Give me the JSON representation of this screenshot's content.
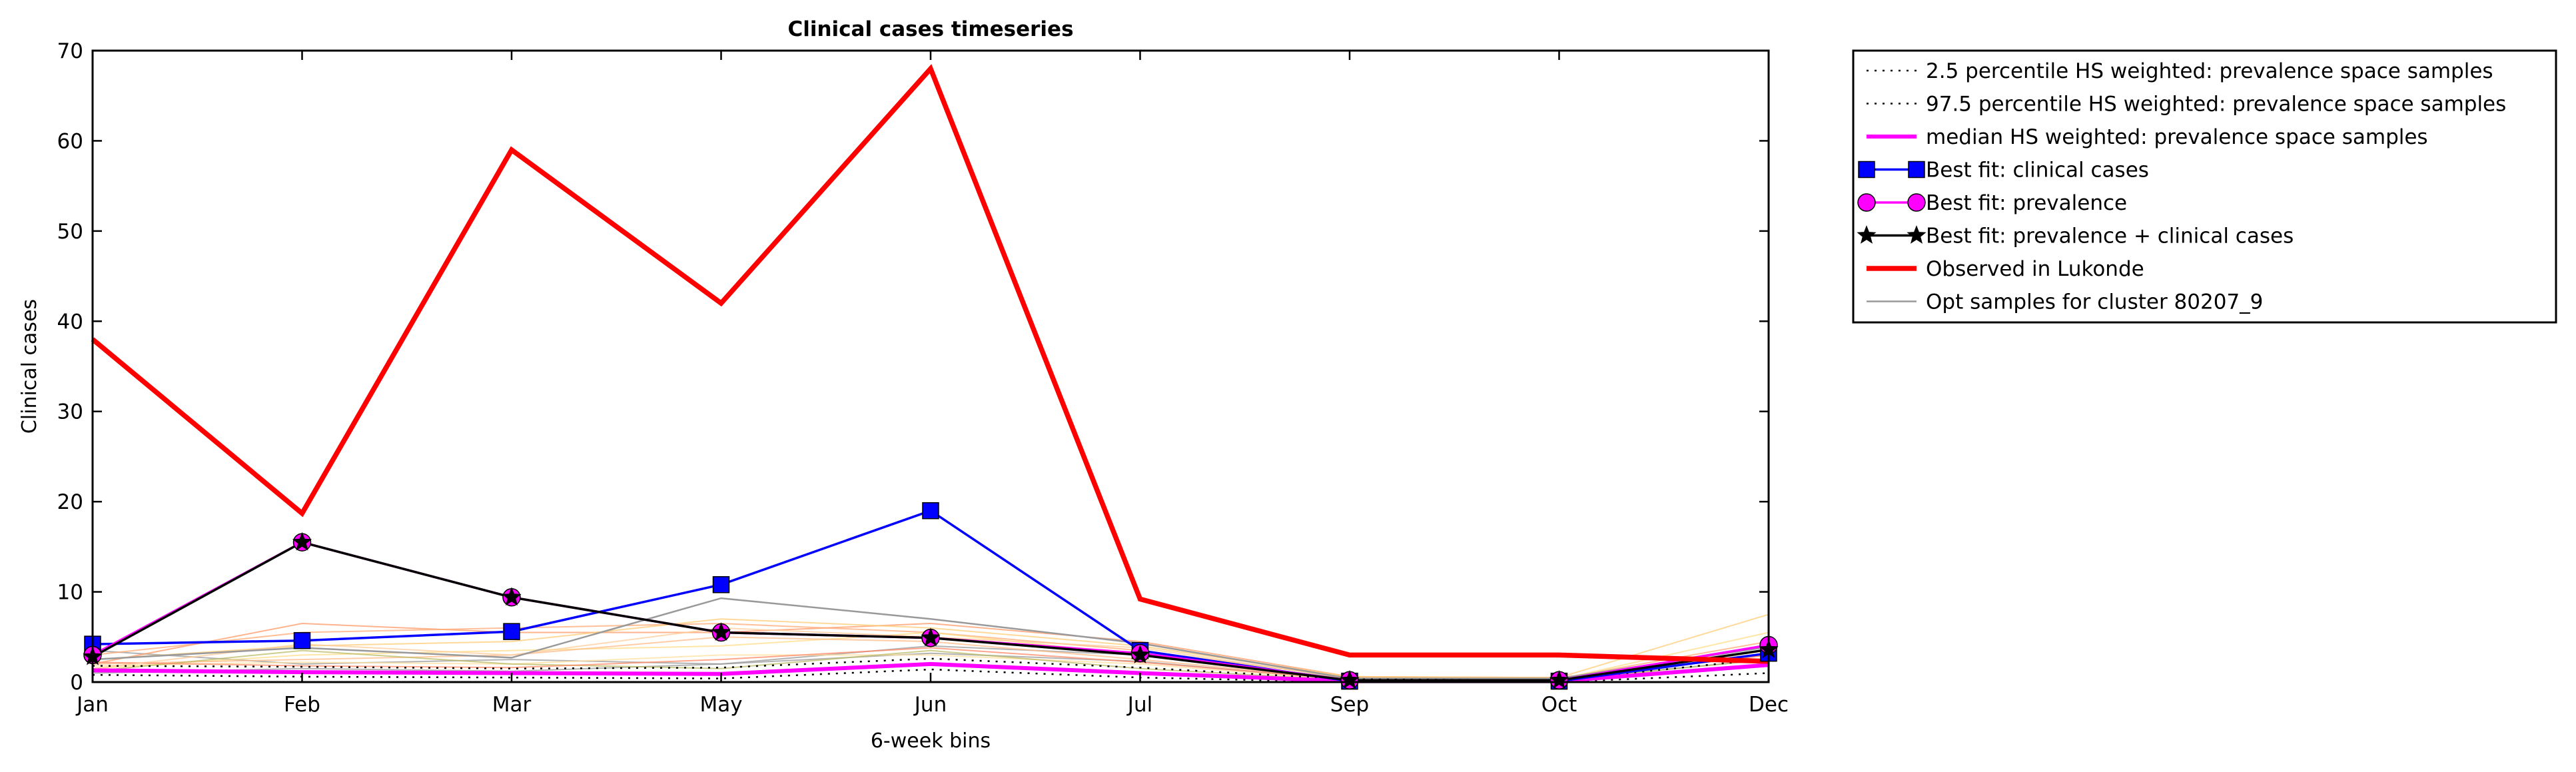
{
  "chart_data": {
    "type": "line",
    "title": "Clinical cases timeseries",
    "xlabel": "6-week bins",
    "ylabel": "Clinical cases",
    "categories": [
      "Jan",
      "Feb",
      "Mar",
      "May",
      "Jun",
      "Jul",
      "Sep",
      "Oct",
      "Dec"
    ],
    "ylim": [
      0,
      70
    ],
    "yticks": [
      0,
      10,
      20,
      30,
      40,
      50,
      60,
      70
    ],
    "grid": false,
    "legend_position": "outside-right-top",
    "series": [
      {
        "name": "2.5 percentile HS weighted: prevalence space samples",
        "values": [
          0.8,
          0.6,
          0.5,
          0.4,
          1.4,
          0.5,
          0.0,
          0.0,
          1.0
        ],
        "color": "#000000",
        "style": "dotted",
        "marker": "none"
      },
      {
        "name": "97.5 percentile HS weighted: prevalence space samples",
        "values": [
          1.8,
          1.7,
          1.5,
          1.6,
          2.6,
          1.6,
          0.3,
          0.2,
          2.6
        ],
        "color": "#000000",
        "style": "dotted",
        "marker": "none"
      },
      {
        "name": "median HS weighted: prevalence space samples",
        "values": [
          1.3,
          1.1,
          1.0,
          0.9,
          2.0,
          1.0,
          0.1,
          0.1,
          1.9
        ],
        "color": "#ff00ff",
        "style": "solid",
        "marker": "none"
      },
      {
        "name": "Best fit: clinical cases",
        "values": [
          4.2,
          4.6,
          5.6,
          10.8,
          19.0,
          3.5,
          0.1,
          0.1,
          3.2
        ],
        "color": "#0000ff",
        "style": "solid",
        "marker": "square"
      },
      {
        "name": "Best fit: prevalence",
        "values": [
          3.0,
          15.5,
          9.4,
          5.5,
          4.9,
          3.2,
          0.2,
          0.2,
          4.1
        ],
        "color": "#ff00ff",
        "style": "solid",
        "marker": "circle"
      },
      {
        "name": "Best fit: prevalence + clinical cases",
        "values": [
          2.8,
          15.5,
          9.4,
          5.5,
          4.9,
          3.0,
          0.2,
          0.2,
          3.6
        ],
        "color": "#000000",
        "style": "solid",
        "marker": "star"
      },
      {
        "name": "Observed in Lukonde",
        "values": [
          38,
          18.7,
          59,
          42,
          68,
          9.2,
          3.0,
          3.0,
          2.3
        ],
        "color": "#ff0000",
        "style": "solid",
        "marker": "none"
      },
      {
        "name": "Opt samples for cluster 80207_9",
        "values": [
          2.5,
          3.8,
          2.7,
          9.3,
          7.0,
          4.3,
          0.4,
          0.4,
          3.9
        ],
        "color": "#999999",
        "style": "solid",
        "marker": "none"
      }
    ],
    "sample_lines": [
      {
        "values": [
          1.0,
          1.5,
          1.2,
          2.0,
          3.2,
          2.3,
          0.2,
          0.2,
          2.0
        ],
        "color": "#999999"
      },
      {
        "values": [
          3.5,
          2.0,
          2.5,
          2.0,
          4.0,
          3.0,
          0.4,
          0.3,
          2.5
        ],
        "color": "#999999"
      },
      {
        "values": [
          2.0,
          6.5,
          5.5,
          5.5,
          6.5,
          4.5,
          0.6,
          0.5,
          3.0
        ],
        "color": "#ff9966"
      },
      {
        "values": [
          3.0,
          5.5,
          6.0,
          6.5,
          5.5,
          3.5,
          0.5,
          0.4,
          4.5
        ],
        "color": "#ffaa77"
      },
      {
        "values": [
          2.5,
          4.0,
          4.5,
          7.0,
          6.0,
          4.0,
          0.6,
          0.5,
          7.5
        ],
        "color": "#ffcc77"
      },
      {
        "values": [
          1.5,
          3.0,
          3.5,
          4.0,
          5.5,
          3.0,
          0.3,
          0.3,
          5.5
        ],
        "color": "#ffdd88"
      },
      {
        "values": [
          2.0,
          2.5,
          3.0,
          5.0,
          4.5,
          2.5,
          0.3,
          0.2,
          4.0
        ],
        "color": "#ffbb88"
      },
      {
        "values": [
          1.8,
          2.2,
          2.0,
          3.0,
          3.0,
          2.0,
          0.2,
          0.2,
          3.5
        ],
        "color": "#ffe0a0"
      },
      {
        "values": [
          1.2,
          3.5,
          2.0,
          1.5,
          3.5,
          1.5,
          0.2,
          0.2,
          2.5
        ],
        "color": "#bbbb66"
      },
      {
        "values": [
          2.2,
          1.8,
          1.6,
          2.5,
          3.8,
          2.2,
          0.3,
          0.3,
          3.0
        ],
        "color": "#ff8866"
      },
      {
        "values": [
          1.5,
          4.2,
          3.0,
          6.0,
          5.0,
          3.8,
          0.4,
          0.3,
          2.0
        ],
        "color": "#ffcc99"
      }
    ]
  }
}
